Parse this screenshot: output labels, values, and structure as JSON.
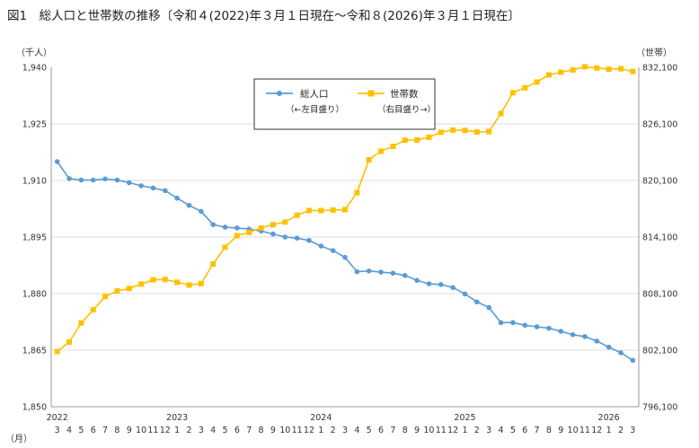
{
  "title": "図1　総人口と世帯数の推移〔令和４(2022)年３月１日現在～令和８(2026)年３月１日現在〕",
  "chart_data": {
    "type": "line",
    "left_unit": "（千人）",
    "right_unit": "（世帯）",
    "month_unit": "（月）",
    "left_axis": {
      "min": 1850,
      "max": 1940,
      "ticks": [
        "1,850",
        "1,865",
        "1,880",
        "1,895",
        "1,910",
        "1,925",
        "1,940"
      ]
    },
    "right_axis": {
      "min": 796100,
      "max": 832100,
      "ticks": [
        "796,100",
        "802,100",
        "808,100",
        "814,100",
        "820,100",
        "826,100",
        "832,100"
      ]
    },
    "months": [
      "3",
      "4",
      "5",
      "6",
      "7",
      "8",
      "9",
      "10",
      "11",
      "12",
      "1",
      "2",
      "3",
      "4",
      "5",
      "6",
      "7",
      "8",
      "9",
      "10",
      "11",
      "12",
      "1",
      "2",
      "3",
      "4",
      "5",
      "6",
      "7",
      "8",
      "9",
      "10",
      "11",
      "12",
      "1",
      "2",
      "3",
      "4",
      "5",
      "6",
      "7",
      "8",
      "9",
      "10",
      "11",
      "12",
      "1",
      "2",
      "3"
    ],
    "year_labels": [
      {
        "label": "2022",
        "index": 0
      },
      {
        "label": "2023",
        "index": 10
      },
      {
        "label": "2024",
        "index": 22
      },
      {
        "label": "2025",
        "index": 34
      },
      {
        "label": "2026",
        "index": 46
      }
    ],
    "series": [
      {
        "name": "総人口",
        "subtitle": "（←左目盛り）",
        "axis": "left",
        "color": "#5B9BD5",
        "values": [
          1915.0,
          1910.5,
          1910.1,
          1910.1,
          1910.4,
          1910.1,
          1909.4,
          1908.6,
          1908.0,
          1907.3,
          1905.3,
          1903.4,
          1901.8,
          1898.3,
          1897.6,
          1897.4,
          1897.1,
          1896.6,
          1895.8,
          1895.0,
          1894.7,
          1894.1,
          1892.6,
          1891.4,
          1889.6,
          1885.8,
          1886.0,
          1885.7,
          1885.4,
          1884.8,
          1883.5,
          1882.6,
          1882.4,
          1881.6,
          1879.9,
          1877.8,
          1876.3,
          1872.3,
          1872.3,
          1871.6,
          1871.2,
          1870.8,
          1870.0,
          1869.1,
          1868.6,
          1867.4,
          1865.8,
          1864.3,
          1862.3
        ]
      },
      {
        "name": "世帯数",
        "subtitle": "（右目盛り→）",
        "axis": "right",
        "color": "#FFC000",
        "values": [
          801950,
          802960,
          804980,
          806370,
          807790,
          808380,
          808640,
          809100,
          809560,
          809600,
          809300,
          809010,
          809160,
          811240,
          813020,
          814240,
          814590,
          815060,
          815410,
          815690,
          816410,
          816910,
          816910,
          816960,
          817000,
          818800,
          822300,
          823200,
          823720,
          824370,
          824390,
          824680,
          825210,
          825440,
          825410,
          825240,
          825290,
          827200,
          829400,
          829930,
          830540,
          831300,
          831580,
          831820,
          832160,
          832030,
          831900,
          831950,
          831660
        ]
      }
    ]
  }
}
